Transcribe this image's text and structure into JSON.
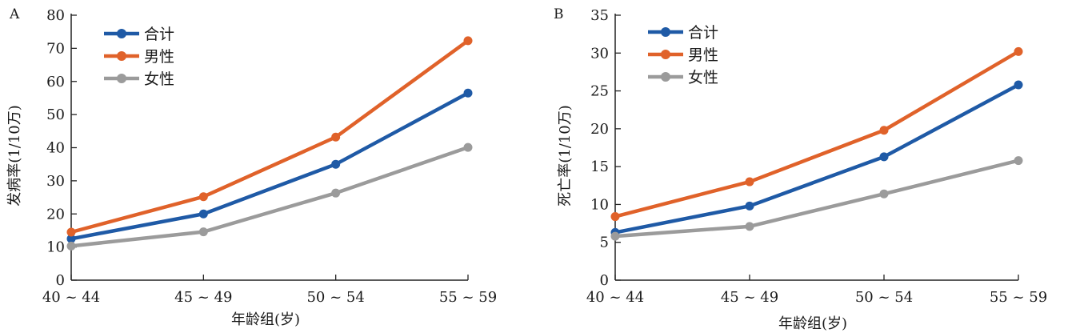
{
  "chart_data": [
    {
      "panel_label": "A",
      "type": "line",
      "categories": [
        "40 ~ 44",
        "45 ~ 49",
        "50 ~ 54",
        "55 ~ 59"
      ],
      "xlabel": "年龄组(岁)",
      "ylabel": "发病率(1/10万)",
      "ylim": [
        0,
        80
      ],
      "yticks": [
        0,
        10,
        20,
        30,
        40,
        50,
        60,
        70,
        80
      ],
      "legend_position": "top-left",
      "series": [
        {
          "name": "合计",
          "color": "#1f5aa6",
          "values": [
            12.5,
            20.0,
            35.0,
            56.5
          ]
        },
        {
          "name": "男性",
          "color": "#e0622a",
          "values": [
            14.5,
            25.2,
            43.2,
            72.3
          ]
        },
        {
          "name": "女性",
          "color": "#9b9b9b",
          "values": [
            10.3,
            14.6,
            26.3,
            40.1
          ]
        }
      ]
    },
    {
      "panel_label": "B",
      "type": "line",
      "categories": [
        "40 ~ 44",
        "45 ~ 49",
        "50 ~ 54",
        "55 ~ 59"
      ],
      "xlabel": "年龄组(岁)",
      "ylabel": "死亡率(1/10万)",
      "ylim": [
        0,
        35
      ],
      "yticks": [
        0,
        5,
        10,
        15,
        20,
        25,
        30,
        35
      ],
      "legend_position": "top-left",
      "series": [
        {
          "name": "合计",
          "color": "#1f5aa6",
          "values": [
            6.3,
            9.8,
            16.3,
            25.8
          ]
        },
        {
          "name": "男性",
          "color": "#e0622a",
          "values": [
            8.4,
            13.0,
            19.8,
            30.2
          ]
        },
        {
          "name": "女性",
          "color": "#9b9b9b",
          "values": [
            5.8,
            7.1,
            11.4,
            15.8
          ]
        }
      ]
    }
  ]
}
